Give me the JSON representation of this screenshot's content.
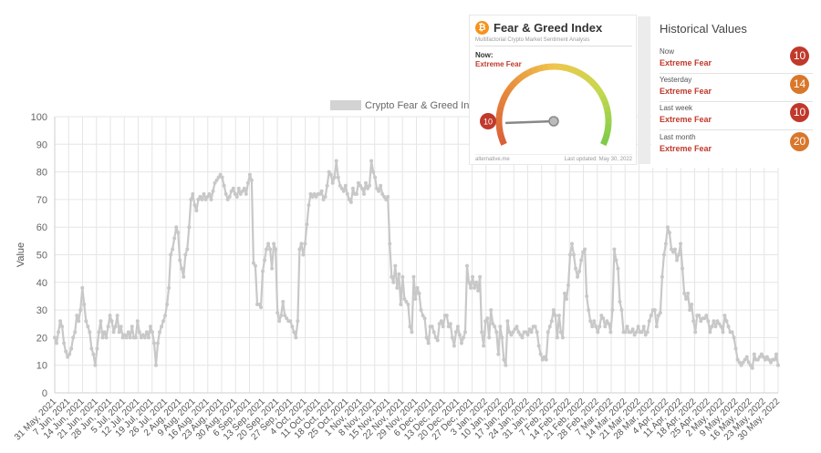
{
  "chart_data": {
    "type": "line",
    "legend": {
      "label": "Crypto Fear & Greed Index",
      "placement": "top-center"
    },
    "ylabel": "Value",
    "ylim": [
      0,
      100
    ],
    "yticks": [
      0,
      10,
      20,
      30,
      40,
      50,
      60,
      70,
      80,
      90,
      100
    ],
    "grid": true,
    "x_tick_labels": [
      "31 May, 2021",
      "7 Jun, 2021",
      "14 Jun, 2021",
      "21 Jun, 2021",
      "28 Jun, 2021",
      "5 Jul, 2021",
      "12 Jul, 2021",
      "19 Jul, 2021",
      "26 Jul, 2021",
      "2 Aug, 2021",
      "9 Aug, 2021",
      "16 Aug, 2021",
      "23 Aug, 2021",
      "30 Aug, 2021",
      "6 Sep, 2021",
      "13 Sep, 2021",
      "20 Sep, 2021",
      "27 Sep, 2021",
      "4 Oct, 2021",
      "11 Oct, 2021",
      "18 Oct, 2021",
      "25 Oct, 2021",
      "1 Nov, 2021",
      "8 Nov, 2021",
      "15 Nov, 2021",
      "22 Nov, 2021",
      "29 Nov, 2021",
      "6 Dec, 2021",
      "13 Dec, 2021",
      "20 Dec, 2021",
      "27 Dec, 2021",
      "3 Jan, 2022",
      "10 Jan, 2022",
      "17 Jan, 2022",
      "24 Jan, 2022",
      "31 Jan, 2022",
      "7 Feb, 2022",
      "14 Feb, 2022",
      "21 Feb, 2022",
      "28 Feb, 2022",
      "7 Mar, 2022",
      "14 Mar, 2022",
      "21 Mar, 2022",
      "28 Mar, 2022",
      "4 Apr, 2022",
      "11 Apr, 2022",
      "18 Apr, 2022",
      "25 Apr, 2022",
      "2 May, 2022",
      "9 May, 2022",
      "16 May, 2022",
      "23 May, 2022",
      "30 May, 2022"
    ],
    "series": [
      {
        "name": "Crypto Fear & Greed Index",
        "color": "#c8c8c8",
        "values": [
          20,
          18,
          22,
          26,
          24,
          18,
          15,
          13,
          14,
          16,
          20,
          22,
          28,
          26,
          30,
          38,
          32,
          26,
          24,
          22,
          16,
          14,
          10,
          16,
          22,
          26,
          20,
          22,
          20,
          24,
          28,
          26,
          22,
          24,
          28,
          22,
          24,
          20,
          21,
          20,
          22,
          20,
          24,
          20,
          20,
          26,
          22,
          20,
          21,
          20,
          22,
          20,
          24,
          22,
          18,
          10,
          18,
          22,
          24,
          26,
          28,
          32,
          38,
          50,
          52,
          56,
          60,
          58,
          48,
          45,
          42,
          50,
          52,
          60,
          70,
          72,
          68,
          66,
          70,
          71,
          70,
          72,
          70,
          71,
          72,
          70,
          73,
          76,
          77,
          78,
          79,
          78,
          75,
          72,
          70,
          71,
          73,
          74,
          72,
          71,
          74,
          72,
          73,
          74,
          72,
          76,
          79,
          77,
          47,
          46,
          32,
          32,
          31,
          44,
          48,
          52,
          54,
          52,
          45,
          54,
          52,
          29,
          26,
          28,
          33,
          28,
          27,
          26,
          26,
          24,
          22,
          20,
          26,
          52,
          54,
          50,
          54,
          61,
          68,
          72,
          71,
          72,
          71,
          72,
          72,
          73,
          70,
          71,
          75,
          80,
          79,
          76,
          78,
          84,
          78,
          75,
          74,
          73,
          75,
          72,
          70,
          69,
          74,
          72,
          72,
          76,
          75,
          74,
          72,
          76,
          74,
          75,
          84,
          80,
          78,
          74,
          73,
          75,
          72,
          71,
          70,
          71,
          54,
          42,
          40,
          46,
          38,
          43,
          32,
          42,
          34,
          33,
          32,
          24,
          22,
          42,
          34,
          38,
          36,
          30,
          28,
          27,
          20,
          18,
          24,
          24,
          22,
          20,
          19,
          25,
          26,
          24,
          28,
          28,
          24,
          25,
          20,
          17,
          22,
          24,
          21,
          18,
          20,
          22,
          46,
          40,
          38,
          42,
          38,
          40,
          37,
          42,
          22,
          17,
          26,
          27,
          20,
          30,
          25,
          24,
          22,
          14,
          24,
          20,
          12,
          10,
          26,
          22,
          21,
          22,
          23,
          24,
          22,
          21,
          20,
          22,
          22,
          21,
          23,
          22,
          24,
          24,
          22,
          17,
          14,
          12,
          13,
          12,
          22,
          24,
          26,
          30,
          28,
          20,
          28,
          22,
          20,
          36,
          34,
          39,
          50,
          54,
          50,
          45,
          42,
          44,
          48,
          51,
          52,
          35,
          30,
          26,
          24,
          26,
          24,
          22,
          24,
          28,
          27,
          24,
          26,
          25,
          22,
          30,
          52,
          48,
          45,
          33,
          30,
          22,
          22,
          24,
          22,
          22,
          23,
          21,
          22,
          24,
          22,
          22,
          24,
          21,
          22,
          26,
          28,
          30,
          30,
          24,
          28,
          29,
          42,
          50,
          54,
          60,
          58,
          52,
          51,
          52,
          48,
          50,
          54,
          45,
          36,
          34,
          36,
          30,
          32,
          26,
          22,
          28,
          28,
          26,
          27,
          27,
          28,
          26,
          22,
          24,
          26,
          24,
          26,
          25,
          24,
          22,
          28,
          26,
          24,
          22,
          22,
          20,
          16,
          12,
          11,
          10,
          11,
          12,
          13,
          11,
          10,
          9,
          14,
          12,
          12,
          13,
          14,
          13,
          12,
          13,
          12,
          11,
          12,
          12,
          14,
          10
        ]
      }
    ]
  },
  "widget": {
    "title": "Fear & Greed Index",
    "subtitle": "Multifactorial Crypto Market Sentiment Analysis",
    "now_label": "Now:",
    "now_value": "Extreme Fear",
    "gauge_value": "10",
    "gauge_fraction": 0.1,
    "footer_left": "alternative.me",
    "footer_right": "Last updated: May 30, 2022",
    "btc_symbol": "₿",
    "btc_color": "#f7931a"
  },
  "historical": {
    "title": "Historical Values",
    "rows": [
      {
        "label": "Now",
        "value": "Extreme Fear",
        "number": "10",
        "badge_color": "#c0392b"
      },
      {
        "label": "Yesterday",
        "value": "Extreme Fear",
        "number": "14",
        "badge_color": "#d9772b"
      },
      {
        "label": "Last week",
        "value": "Extreme Fear",
        "number": "10",
        "badge_color": "#c0392b"
      },
      {
        "label": "Last month",
        "value": "Extreme Fear",
        "number": "20",
        "badge_color": "#d9772b"
      }
    ]
  }
}
